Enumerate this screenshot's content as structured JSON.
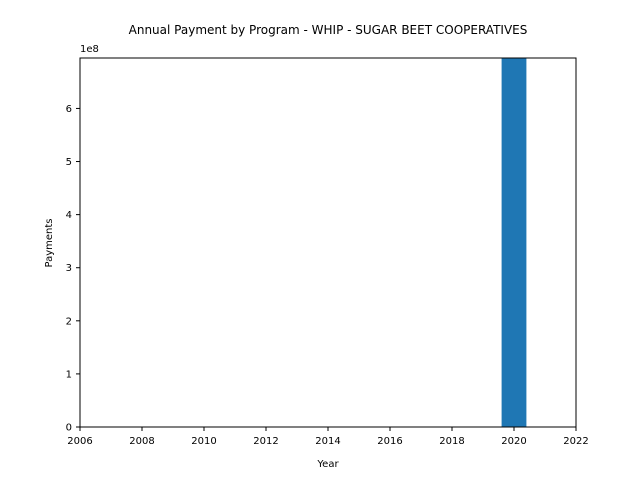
{
  "chart_data": {
    "type": "bar",
    "title": "Annual Payment by Program - WHIP - SUGAR BEET COOPERATIVES",
    "xlabel": "Year",
    "ylabel": "Payments",
    "y_offset_label": "1e8",
    "xlim": [
      2006,
      2022
    ],
    "ylim": [
      0,
      6.95
    ],
    "y_scale_multiplier": 100000000,
    "xticks": [
      "2006",
      "2008",
      "2010",
      "2012",
      "2014",
      "2016",
      "2018",
      "2020",
      "2022"
    ],
    "yticks": [
      "0",
      "1",
      "2",
      "3",
      "4",
      "5",
      "6"
    ],
    "bars": [
      {
        "x": 2020,
        "value": 6.95,
        "color": "#1f77b4"
      }
    ],
    "bar_width_years": 0.8,
    "grid": false,
    "legend": "none"
  }
}
